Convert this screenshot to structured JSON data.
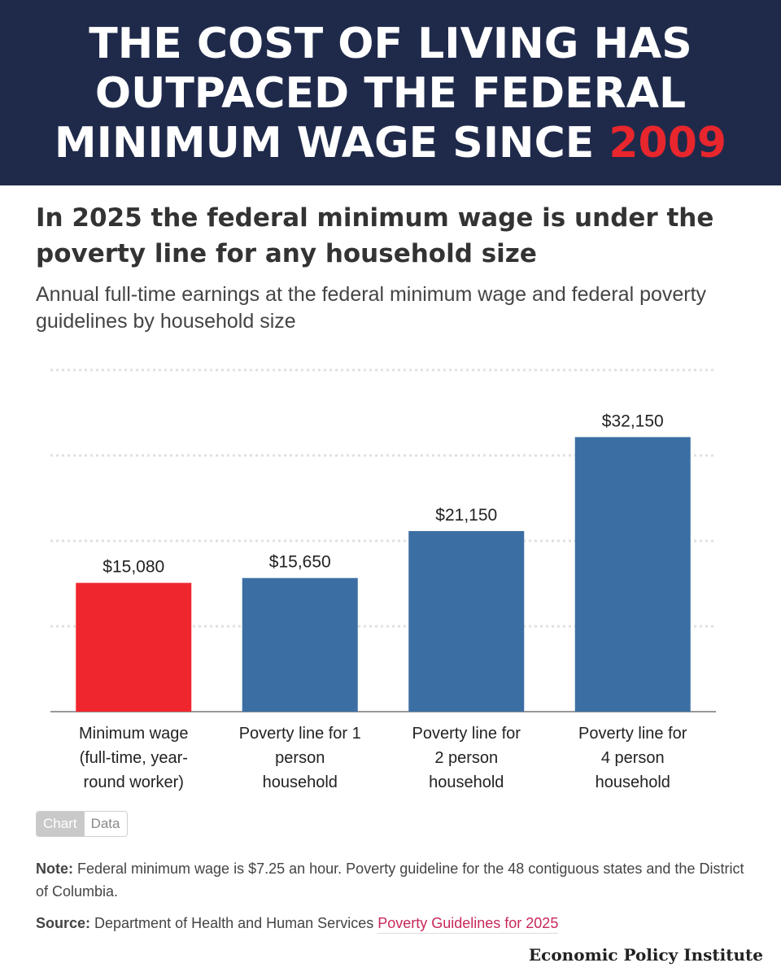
{
  "banner": {
    "title_part1": "THE COST OF LIVING HAS OUTPACED THE FEDERAL MINIMUM WAGE SINCE ",
    "title_accent": "2009",
    "background_color": "#1f2a4b",
    "accent_color": "#e8262d"
  },
  "chart_data": {
    "type": "bar",
    "title": "In 2025 the federal minimum wage is under the poverty line for any household size",
    "subtitle": "Annual full-time earnings at the federal minimum wage and federal poverty guidelines by household size",
    "categories": [
      "Minimum wage (full-time, year-round worker)",
      "Poverty line for 1 person household",
      "Poverty line for 2 person household",
      "Poverty line for 4 person household"
    ],
    "category_lines": [
      [
        "Minimum wage",
        "(full-time, year-",
        "round worker)"
      ],
      [
        "Poverty line for 1",
        "person",
        "household"
      ],
      [
        "Poverty line for",
        "2 person",
        "household"
      ],
      [
        "Poverty line for",
        "4 person",
        "household"
      ]
    ],
    "values": [
      15080,
      15650,
      21150,
      32150
    ],
    "value_labels": [
      "$15,080",
      "$15,650",
      "$21,150",
      "$32,150"
    ],
    "colors": [
      "#f0262e",
      "#3b6fa3",
      "#3b6fa3",
      "#3b6fa3"
    ],
    "ylim": [
      0,
      40000
    ],
    "gridlines": [
      10000,
      20000,
      30000,
      40000
    ],
    "grid": true,
    "xlabel": "",
    "ylabel": ""
  },
  "toggle": {
    "chart_label": "Chart",
    "data_label": "Data"
  },
  "note": {
    "label": "Note:",
    "text": " Federal minimum wage is $7.25 an hour. Poverty guideline for the 48 contiguous states and the District of Columbia."
  },
  "source": {
    "label": "Source:",
    "text": " Department of Health and Human Services ",
    "link_text": "Poverty Guidelines for 2025"
  },
  "brand": "Economic Policy Institute"
}
